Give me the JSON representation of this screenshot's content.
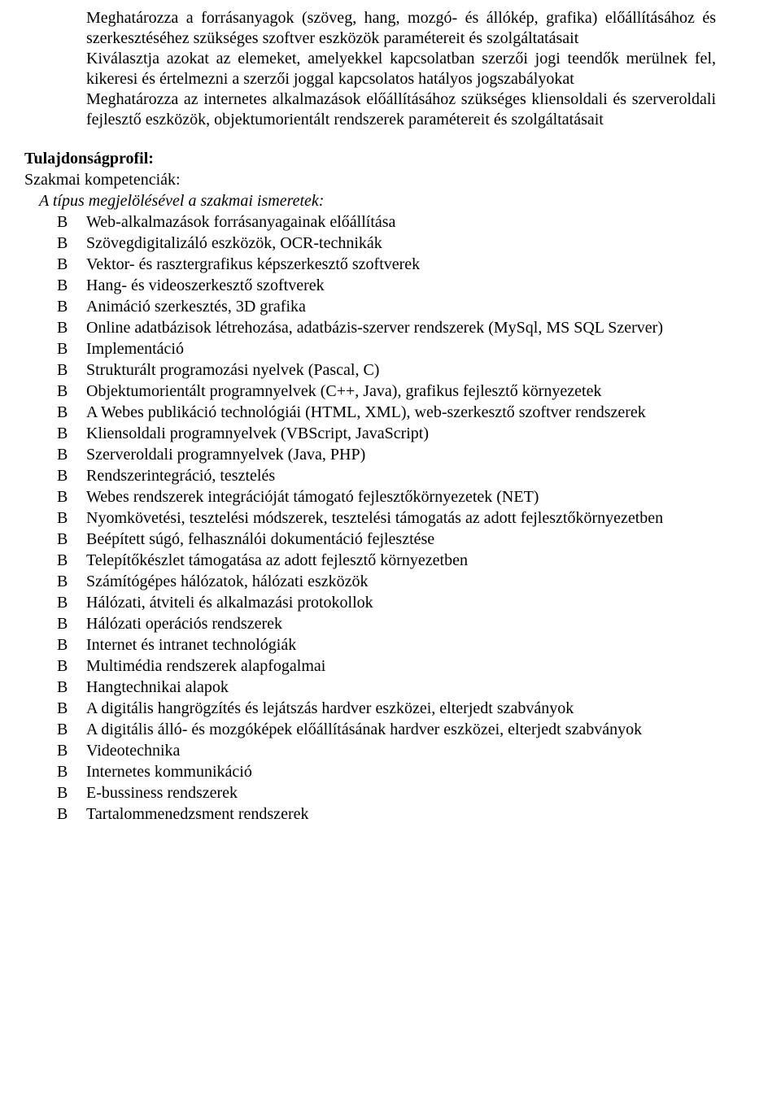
{
  "intro_paragraphs": [
    "Meghatározza a forrásanyagok (szöveg, hang, mozgó- és állókép, grafika) előállításához és szerkesztéséhez szükséges szoftver eszközök paramétereit és szolgáltatásait",
    "Kiválasztja azokat az elemeket, amelyekkel kapcsolatban szerzői jogi teendők merülnek fel, kikeresi és értelmezni a szerzői joggal kapcsolatos hatályos jogszabályokat",
    "Meghatározza az internetes alkalmazások előállításához szükséges kliensoldali és szerveroldali fejlesztő eszközök, objektumorientált rendszerek paramétereit és szolgáltatásait"
  ],
  "section_heading": "Tulajdonságprofil:",
  "sub_heading_plain": "Szakmai kompetenciák:",
  "sub_heading_italic": "A típus megjelölésével a szakmai ismeretek:",
  "sub_heading_indent_plain": "0px",
  "sub_heading_indent_italic": "18px",
  "list": [
    {
      "label": "B",
      "text": "Web-alkalmazások forrásanyagainak előállítása"
    },
    {
      "label": "B",
      "text": "Szövegdigitalizáló eszközök, OCR-technikák"
    },
    {
      "label": "B",
      "text": "Vektor- és rasztergrafikus képszerkesztő szoftverek"
    },
    {
      "label": "B",
      "text": "Hang- és videoszerkesztő szoftverek"
    },
    {
      "label": "B",
      "text": "Animáció szerkesztés, 3D grafika"
    },
    {
      "label": "B",
      "text": "Online adatbázisok létrehozása, adatbázis-szerver rendszerek (MySql, MS SQL Szerver)"
    },
    {
      "label": "B",
      "text": "Implementáció"
    },
    {
      "label": "B",
      "text": "Strukturált programozási nyelvek (Pascal, C)"
    },
    {
      "label": "B",
      "text": "Objektumorientált programnyelvek (C++, Java), grafikus fejlesztő környezetek"
    },
    {
      "label": "B",
      "text": "A Webes publikáció technológiái (HTML, XML), web-szerkesztő szoftver rendszerek"
    },
    {
      "label": "B",
      "text": "Kliensoldali programnyelvek (VBScript, JavaScript)"
    },
    {
      "label": "B",
      "text": "Szerveroldali programnyelvek (Java, PHP)"
    },
    {
      "label": "B",
      "text": "Rendszerintegráció, tesztelés"
    },
    {
      "label": "B",
      "text": "Webes rendszerek integrációját támogató fejlesztőkörnyezetek (NET)"
    },
    {
      "label": "B",
      "text": "Nyomkövetési, tesztelési módszerek, tesztelési támogatás az adott fejlesztőkörnyezetben"
    },
    {
      "label": "B",
      "text": "Beépített súgó, felhasználói dokumentáció fejlesztése"
    },
    {
      "label": "B",
      "text": "Telepítőkészlet támogatása az adott fejlesztő környezetben"
    },
    {
      "label": "B",
      "text": "Számítógépes hálózatok, hálózati eszközök"
    },
    {
      "label": "B",
      "text": "Hálózati, átviteli és alkalmazási protokollok"
    },
    {
      "label": "B",
      "text": "Hálózati operációs rendszerek"
    },
    {
      "label": "B",
      "text": "Internet és intranet technológiák"
    },
    {
      "label": "B",
      "text": "Multimédia rendszerek alapfogalmai"
    },
    {
      "label": "B",
      "text": "Hangtechnikai alapok"
    },
    {
      "label": "B",
      "text": "A digitális hangrögzítés és lejátszás hardver eszközei, elterjedt szabványok"
    },
    {
      "label": "B",
      "text": "A digitális álló- és mozgóképek előállításának hardver eszközei, elterjedt szabványok"
    },
    {
      "label": "B",
      "text": "Videotechnika"
    },
    {
      "label": "B",
      "text": "Internetes kommunikáció"
    },
    {
      "label": "B",
      "text": "E-bussiness rendszerek"
    },
    {
      "label": "B",
      "text": "Tartalommenedzsment rendszerek"
    }
  ]
}
